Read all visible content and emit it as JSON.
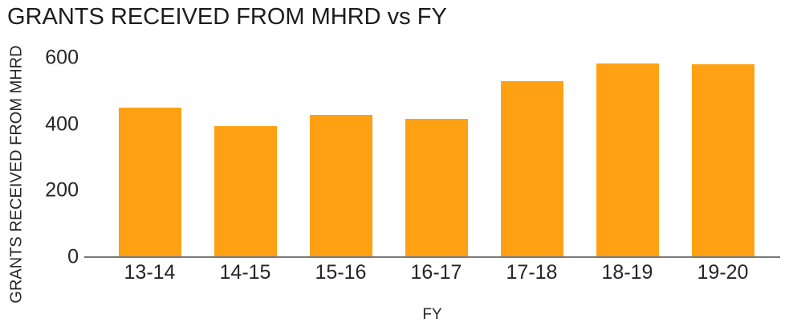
{
  "chart_data": {
    "type": "bar",
    "title": "GRANTS RECEIVED FROM MHRD vs FY",
    "xlabel": "FY",
    "ylabel": "GRANTS RECEIVED FROM MHRD",
    "categories": [
      "13-14",
      "14-15",
      "15-16",
      "16-17",
      "17-18",
      "18-19",
      "19-20"
    ],
    "values": [
      450,
      394,
      429,
      415,
      529,
      584,
      580
    ],
    "ylim": [
      0,
      600
    ],
    "yticks": [
      0,
      200,
      400,
      600
    ],
    "grid": false,
    "legend": false,
    "bar_color": "#FFA113",
    "axis_line_color": "#7A7A7A",
    "text_color": "#262626"
  }
}
